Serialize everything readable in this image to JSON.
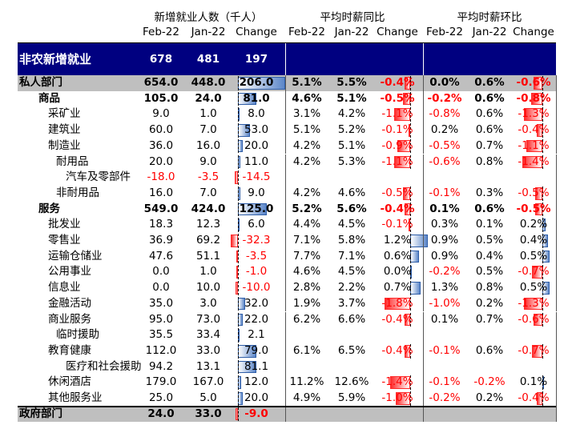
{
  "headers": {
    "group1": "新增就业人数（千人）",
    "group2": "平均时薪同比",
    "group3": "平均时薪环比",
    "cols": [
      "Feb-22",
      "Jan-22",
      "Change",
      "Feb-22",
      "Jan-22",
      "Change",
      "Feb-22",
      "Jan-22",
      "Change"
    ]
  },
  "rows": [
    {
      "name": "非农新增就业",
      "indent": 0,
      "style": "banner",
      "c": [
        "678",
        "481",
        "197",
        "",
        "",
        "",
        "",
        "",
        ""
      ],
      "b": [
        null,
        null,
        null
      ]
    },
    {
      "name": "私人部门",
      "indent": 0,
      "style": "gray",
      "c": [
        "654.0",
        "448.0",
        "206.0",
        "5.1%",
        "5.5%",
        "-0.4%",
        "0.0%",
        "0.6%",
        "-0.6%"
      ],
      "b": [
        0.65,
        -0.4,
        -0.6
      ]
    },
    {
      "name": "商品",
      "indent": 1,
      "style": "bold",
      "c": [
        "105.0",
        "24.0",
        "81.0",
        "4.6%",
        "5.1%",
        "-0.5%",
        "-0.2%",
        "0.6%",
        "-0.8%"
      ],
      "b": [
        0.25,
        -0.5,
        -0.8
      ]
    },
    {
      "name": "采矿业",
      "indent": 2,
      "style": "",
      "c": [
        "9.0",
        "1.0",
        "8.0",
        "3.1%",
        "4.2%",
        "-1.1%",
        "-0.8%",
        "0.6%",
        "-1.3%"
      ],
      "b": [
        0.025,
        -1.1,
        -1.3
      ]
    },
    {
      "name": "建筑业",
      "indent": 2,
      "style": "",
      "c": [
        "60.0",
        "7.0",
        "53.0",
        "5.1%",
        "5.2%",
        "-0.1%",
        "0.2%",
        "0.6%",
        "-0.4%"
      ],
      "b": [
        0.17,
        -0.1,
        -0.4
      ]
    },
    {
      "name": "制造业",
      "indent": 2,
      "style": "",
      "c": [
        "36.0",
        "16.0",
        "20.0",
        "4.2%",
        "5.1%",
        "-0.9%",
        "-0.5%",
        "0.7%",
        "-1.1%"
      ],
      "b": [
        0.065,
        -0.9,
        -1.1
      ]
    },
    {
      "name": "耐用品",
      "indent": 3,
      "style": "",
      "c": [
        "20.0",
        "9.0",
        "11.0",
        "4.2%",
        "5.3%",
        "-1.1%",
        "-0.6%",
        "0.8%",
        "-1.4%"
      ],
      "b": [
        0.035,
        -1.1,
        -1.4
      ]
    },
    {
      "name": "汽车及零部件",
      "indent": 4,
      "style": "",
      "c": [
        "-18.0",
        "-3.5",
        "-14.5",
        "",
        "",
        "",
        "",
        "",
        ""
      ],
      "b": [
        -0.045,
        null,
        null
      ]
    },
    {
      "name": "非耐用品",
      "indent": 3,
      "style": "",
      "c": [
        "16.0",
        "7.0",
        "9.0",
        "4.2%",
        "4.6%",
        "-0.5%",
        "-0.1%",
        "0.3%",
        "-0.5%"
      ],
      "b": [
        0.03,
        -0.5,
        -0.5
      ]
    },
    {
      "name": "服务",
      "indent": 1,
      "style": "bold",
      "c": [
        "549.0",
        "424.0",
        "125.0",
        "5.2%",
        "5.6%",
        "-0.4%",
        "0.1%",
        "0.6%",
        "-0.5%"
      ],
      "b": [
        0.4,
        -0.4,
        -0.5
      ]
    },
    {
      "name": "批发业",
      "indent": 2,
      "style": "",
      "c": [
        "18.3",
        "12.3",
        "6.0",
        "4.4%",
        "4.5%",
        "-0.1%",
        "0.3%",
        "0.1%",
        "0.2%"
      ],
      "b": [
        0.02,
        -0.1,
        0.2
      ]
    },
    {
      "name": "零售业",
      "indent": 2,
      "style": "",
      "c": [
        "36.9",
        "69.2",
        "-32.3",
        "7.1%",
        "5.8%",
        "1.2%",
        "0.9%",
        "0.5%",
        "0.4%"
      ],
      "b": [
        -0.1,
        1.2,
        0.4
      ]
    },
    {
      "name": "运输仓储业",
      "indent": 2,
      "style": "",
      "c": [
        "47.6",
        "51.1",
        "-3.5",
        "7.7%",
        "7.1%",
        "0.6%",
        "0.9%",
        "0.4%",
        "0.5%"
      ],
      "b": [
        -0.011,
        0.6,
        0.5
      ]
    },
    {
      "name": "公用事业",
      "indent": 2,
      "style": "",
      "c": [
        "0.0",
        "1.0",
        "-1.0",
        "4.6%",
        "4.5%",
        "0.0%",
        "-0.2%",
        "0.5%",
        "-0.7%"
      ],
      "b": [
        -0.003,
        0.0,
        -0.7
      ]
    },
    {
      "name": "信息业",
      "indent": 2,
      "style": "",
      "c": [
        "0.0",
        "10.0",
        "-10.0",
        "2.8%",
        "2.2%",
        "0.7%",
        "1.3%",
        "0.8%",
        "0.5%"
      ],
      "b": [
        -0.03,
        0.7,
        0.5
      ]
    },
    {
      "name": "金融活动",
      "indent": 2,
      "style": "",
      "c": [
        "35.0",
        "3.0",
        "32.0",
        "1.9%",
        "3.7%",
        "-1.8%",
        "-1.0%",
        "0.2%",
        "-1.3%"
      ],
      "b": [
        0.1,
        -1.8,
        -1.3
      ]
    },
    {
      "name": "商业服务",
      "indent": 2,
      "style": "",
      "c": [
        "95.0",
        "73.0",
        "22.0",
        "6.2%",
        "6.6%",
        "-0.4%",
        "0.1%",
        "0.7%",
        "-0.6%"
      ],
      "b": [
        0.07,
        -0.4,
        -0.6
      ]
    },
    {
      "name": "临时援助",
      "indent": 3,
      "style": "",
      "c": [
        "35.5",
        "33.4",
        "2.1",
        "",
        "",
        "",
        "",
        "",
        ""
      ],
      "b": [
        0.007,
        null,
        null
      ]
    },
    {
      "name": "教育健康",
      "indent": 2,
      "style": "",
      "c": [
        "112.0",
        "33.0",
        "79.0",
        "6.1%",
        "6.5%",
        "-0.4%",
        "-0.1%",
        "0.6%",
        "-0.7%"
      ],
      "b": [
        0.25,
        -0.4,
        -0.7
      ]
    },
    {
      "name": "医疗和社会援助",
      "indent": 4,
      "style": "",
      "c": [
        "94.2",
        "13.1",
        "81.1",
        "",
        "",
        "",
        "",
        "",
        ""
      ],
      "b": [
        0.26,
        null,
        null
      ]
    },
    {
      "name": "休闲酒店",
      "indent": 2,
      "style": "",
      "c": [
        "179.0",
        "167.0",
        "12.0",
        "11.2%",
        "12.6%",
        "-1.4%",
        "-0.1%",
        "-0.2%",
        "0.1%"
      ],
      "b": [
        0.04,
        -1.4,
        0.1
      ]
    },
    {
      "name": "其他服务业",
      "indent": 2,
      "style": "",
      "c": [
        "25.0",
        "5.0",
        "20.0",
        "4.9%",
        "5.9%",
        "-1.0%",
        "-0.2%",
        "0.2%",
        "-0.4%"
      ],
      "b": [
        0.065,
        -1.0,
        -0.4
      ]
    },
    {
      "name": "政府部门",
      "indent": 0,
      "style": "gray",
      "c": [
        "24.0",
        "33.0",
        "-9.0",
        "",
        "",
        "",
        "",
        "",
        ""
      ],
      "b": [
        -0.03,
        null,
        null
      ]
    }
  ],
  "colors": {
    "banner": "#000080",
    "gray": "#bfbfbf",
    "neg_text": "#ff0000",
    "bar_pos": "#5b86c9",
    "bar_neg": "#ff2b2b"
  }
}
